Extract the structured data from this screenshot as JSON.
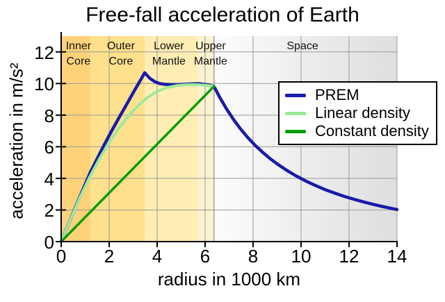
{
  "chart_data": {
    "type": "line",
    "title": "Free-fall acceleration of Earth",
    "xlabel": "radius in 1000 km",
    "ylabel": "acceleration in m/s²",
    "xlim": [
      0,
      14
    ],
    "ylim": [
      0,
      13
    ],
    "x_ticks": [
      0,
      2,
      4,
      6,
      8,
      10,
      12,
      14
    ],
    "y_ticks": [
      0,
      2,
      4,
      6,
      8,
      10,
      12
    ],
    "grid": true,
    "grid_color": "#999999",
    "legend_position": "upper right",
    "surface_boundary_x": 6.37,
    "regions": [
      {
        "label": "Inner Core",
        "lines": [
          "Inner",
          "Core"
        ],
        "from": 0,
        "to": 1.22,
        "color": "#ffd27a",
        "label_center_x": 0.72
      },
      {
        "label": "Outer Core",
        "lines": [
          "Outer",
          "Core"
        ],
        "from": 1.22,
        "to": 3.48,
        "color": "#ffe08c",
        "label_center_x": 2.49
      },
      {
        "label": "Lower Mantle",
        "lines": [
          "Lower",
          "Mantle"
        ],
        "from": 3.48,
        "to": 5.7,
        "color": "#ffedb3",
        "label_center_x": 4.49
      },
      {
        "label": "Upper Mantle",
        "lines": [
          "Upper",
          "Mantle"
        ],
        "from": 5.7,
        "to": 6.37,
        "color": "#fbf2cf",
        "label_center_x": 6.23
      },
      {
        "label": "Space",
        "lines": [
          "Space"
        ],
        "from": 6.37,
        "to": 14,
        "color": "gradient",
        "gradient_from": "#fcfcfc",
        "gradient_to": "#dedede",
        "label_center_x": 10.06
      }
    ],
    "series": [
      {
        "name": "PREM",
        "color": "#1a1aa8",
        "width": 4.5,
        "points": [
          [
            0,
            0
          ],
          [
            0.3,
            1.09
          ],
          [
            0.6,
            2.19
          ],
          [
            0.9,
            3.27
          ],
          [
            1.22,
            4.4
          ],
          [
            1.5,
            5.25
          ],
          [
            1.8,
            6.14
          ],
          [
            2.1,
            6.99
          ],
          [
            2.4,
            7.81
          ],
          [
            2.7,
            8.61
          ],
          [
            3.0,
            9.41
          ],
          [
            3.2,
            9.94
          ],
          [
            3.35,
            10.33
          ],
          [
            3.48,
            10.68
          ],
          [
            3.58,
            10.52
          ],
          [
            3.7,
            10.32
          ],
          [
            3.9,
            10.12
          ],
          [
            4.1,
            10.0
          ],
          [
            4.3,
            9.95
          ],
          [
            4.6,
            9.93
          ],
          [
            4.9,
            9.93
          ],
          [
            5.2,
            9.95
          ],
          [
            5.5,
            9.98
          ],
          [
            5.7,
            9.99
          ],
          [
            5.9,
            9.96
          ],
          [
            6.1,
            9.92
          ],
          [
            6.37,
            9.82
          ],
          [
            6.6,
            9.15
          ],
          [
            6.9,
            8.37
          ],
          [
            7.2,
            7.69
          ],
          [
            7.5,
            7.08
          ],
          [
            7.8,
            6.55
          ],
          [
            8.1,
            6.07
          ],
          [
            8.4,
            5.65
          ],
          [
            8.7,
            5.26
          ],
          [
            9.0,
            4.92
          ],
          [
            9.4,
            4.51
          ],
          [
            9.8,
            4.15
          ],
          [
            10.2,
            3.83
          ],
          [
            10.6,
            3.55
          ],
          [
            11.0,
            3.29
          ],
          [
            11.4,
            3.07
          ],
          [
            11.8,
            2.86
          ],
          [
            12.2,
            2.68
          ],
          [
            12.6,
            2.51
          ],
          [
            13.0,
            2.36
          ],
          [
            13.4,
            2.22
          ],
          [
            13.8,
            2.09
          ],
          [
            14.0,
            2.03
          ]
        ]
      },
      {
        "name": "Linear density",
        "color": "#9ce99c",
        "width": 4,
        "points": [
          [
            0,
            0
          ],
          [
            0.4,
            1.45
          ],
          [
            0.8,
            2.85
          ],
          [
            1.2,
            4.12
          ],
          [
            1.6,
            5.25
          ],
          [
            2.0,
            6.27
          ],
          [
            2.4,
            7.16
          ],
          [
            2.8,
            7.94
          ],
          [
            3.2,
            8.6
          ],
          [
            3.6,
            9.12
          ],
          [
            4.0,
            9.5
          ],
          [
            4.4,
            9.74
          ],
          [
            4.8,
            9.87
          ],
          [
            5.2,
            9.92
          ],
          [
            5.6,
            9.93
          ],
          [
            6.0,
            9.9
          ],
          [
            6.37,
            9.82
          ]
        ]
      },
      {
        "name": "Constant density",
        "color": "#0a9c0a",
        "width": 3.5,
        "points": [
          [
            0,
            0
          ],
          [
            6.37,
            9.82
          ]
        ]
      }
    ]
  },
  "colors": {
    "axis": "#000000",
    "grid": "#999999",
    "surface_line": "#a0a0a0",
    "background": "#ffffff"
  }
}
